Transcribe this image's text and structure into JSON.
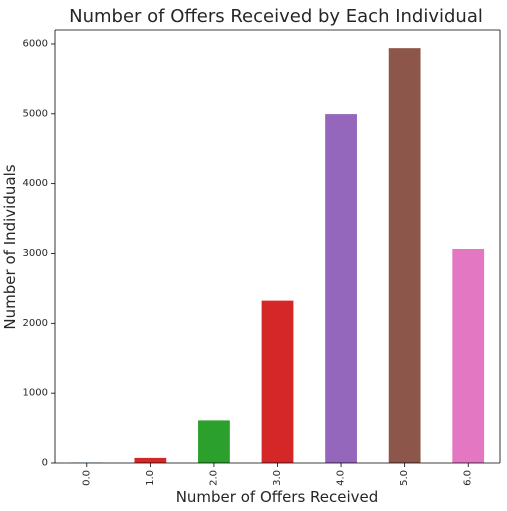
{
  "chart_data": {
    "type": "bar",
    "title": "Number of Offers Received by Each Individual",
    "xlabel": "Number of Offers Received",
    "ylabel": "Number of Individuals",
    "categories": [
      "0.0",
      "1.0",
      "2.0",
      "3.0",
      "4.0",
      "5.0",
      "6.0"
    ],
    "values": [
      5,
      73,
      610,
      2325,
      4996,
      5940,
      3064
    ],
    "bar_colors": [
      "#1f77b4",
      "#d62728",
      "#2ca02c",
      "#d62728",
      "#9467bd",
      "#8c564b",
      "#e377c2"
    ],
    "ylim": [
      0,
      6200
    ],
    "yticks": [
      0,
      1000,
      2000,
      3000,
      4000,
      5000,
      6000
    ],
    "ytick_labels": [
      "0",
      "1000",
      "2000",
      "3000",
      "4000",
      "5000",
      "6000"
    ],
    "grid": false,
    "legend": false
  }
}
